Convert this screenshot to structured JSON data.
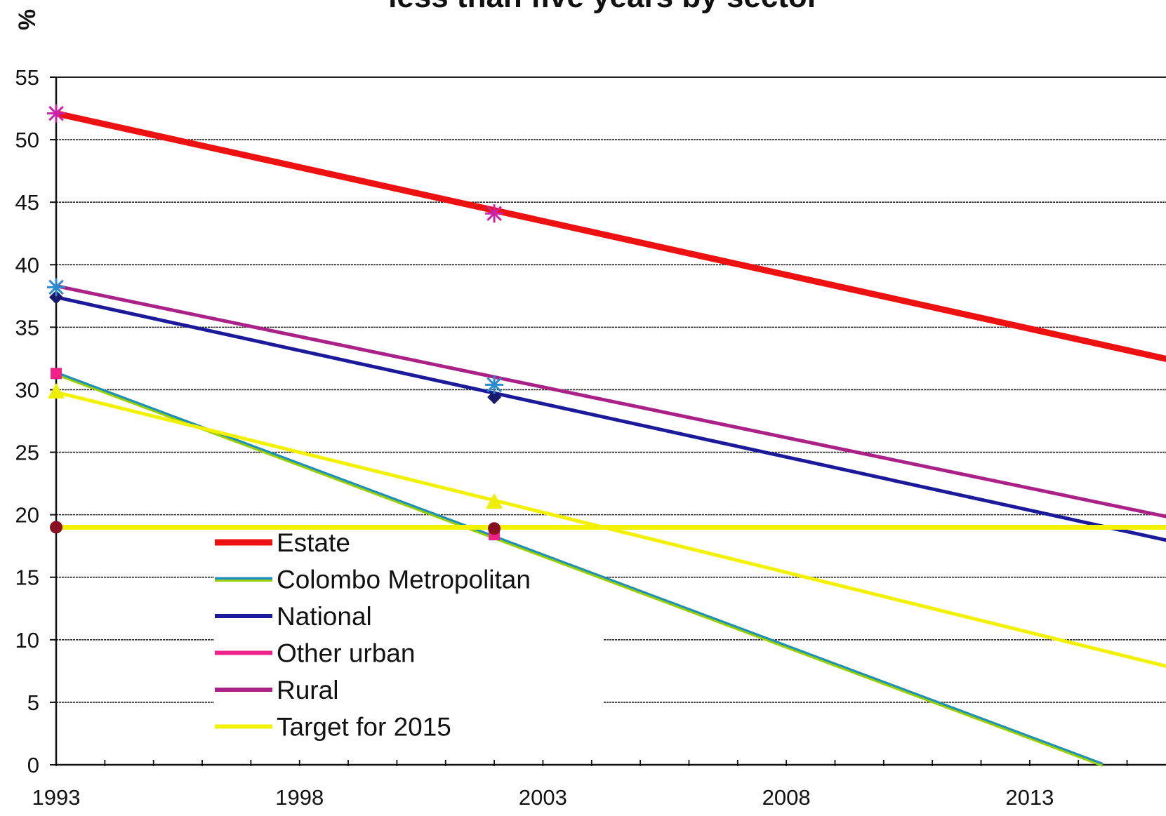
{
  "chart_data": {
    "type": "line",
    "title": "less than five years by sector",
    "ylabel": "%",
    "xlabel": "",
    "xlim": [
      1993,
      2015.8
    ],
    "ylim": [
      0,
      55
    ],
    "yticks": [
      0,
      5,
      10,
      15,
      20,
      25,
      30,
      35,
      40,
      45,
      50,
      55
    ],
    "xtick_labels": [
      "1993",
      "1998",
      "2003",
      "2008",
      "2013"
    ],
    "xticks": [
      1993,
      1998,
      2003,
      2008,
      2013
    ],
    "grid": true,
    "legend_position": "bottom-left",
    "series": [
      {
        "name": "Estate",
        "color": "#ee1111",
        "marker": "star",
        "marker_color": "#cc22aa",
        "points": [
          [
            1993,
            52.1
          ],
          [
            2002,
            44.1
          ]
        ],
        "trend": [
          [
            1993,
            52.1
          ],
          [
            2016,
            32.3
          ]
        ]
      },
      {
        "name": "Colombo Metropolitan",
        "color": "#1a8fc0",
        "marker": "none",
        "points": [],
        "trend": [
          [
            1993,
            31.3
          ],
          [
            2014.5,
            0
          ]
        ]
      },
      {
        "name": "National",
        "color": "#1a1a9a",
        "marker": "diamond",
        "marker_color": "#1a1a6a",
        "points": [
          [
            1993,
            37.4
          ],
          [
            2002,
            29.4
          ]
        ],
        "trend": [
          [
            1993,
            37.4
          ],
          [
            2016,
            17.8
          ]
        ]
      },
      {
        "name": "Other urban",
        "color": "#ee2288",
        "marker": "square",
        "marker_color": "#ee2288",
        "points": [
          [
            1993,
            31.3
          ],
          [
            2002,
            18.4
          ]
        ],
        "trend": []
      },
      {
        "name": "Rural",
        "color": "#aa2288",
        "marker": "star",
        "marker_color": "#2a8ad0",
        "points": [
          [
            1993,
            38.2
          ],
          [
            2002,
            30.4
          ]
        ],
        "trend": [
          [
            1993,
            38.3
          ],
          [
            2016,
            19.7
          ]
        ]
      },
      {
        "name": "Target for 2015",
        "color": "#f2f200",
        "marker": "triangle",
        "marker_color": "#eeee00",
        "points": [
          [
            1993,
            29.8
          ],
          [
            2002,
            21.0
          ]
        ],
        "trend": [
          [
            1993,
            29.8
          ],
          [
            2016,
            7.7
          ]
        ]
      },
      {
        "name": "",
        "color": "#f2f200",
        "marker": "circle",
        "marker_color": "#881122",
        "points": [
          [
            1993,
            19.0
          ],
          [
            2002,
            18.9
          ]
        ],
        "trend": [
          [
            1993,
            19.0
          ],
          [
            2016,
            19.0
          ]
        ]
      }
    ]
  }
}
